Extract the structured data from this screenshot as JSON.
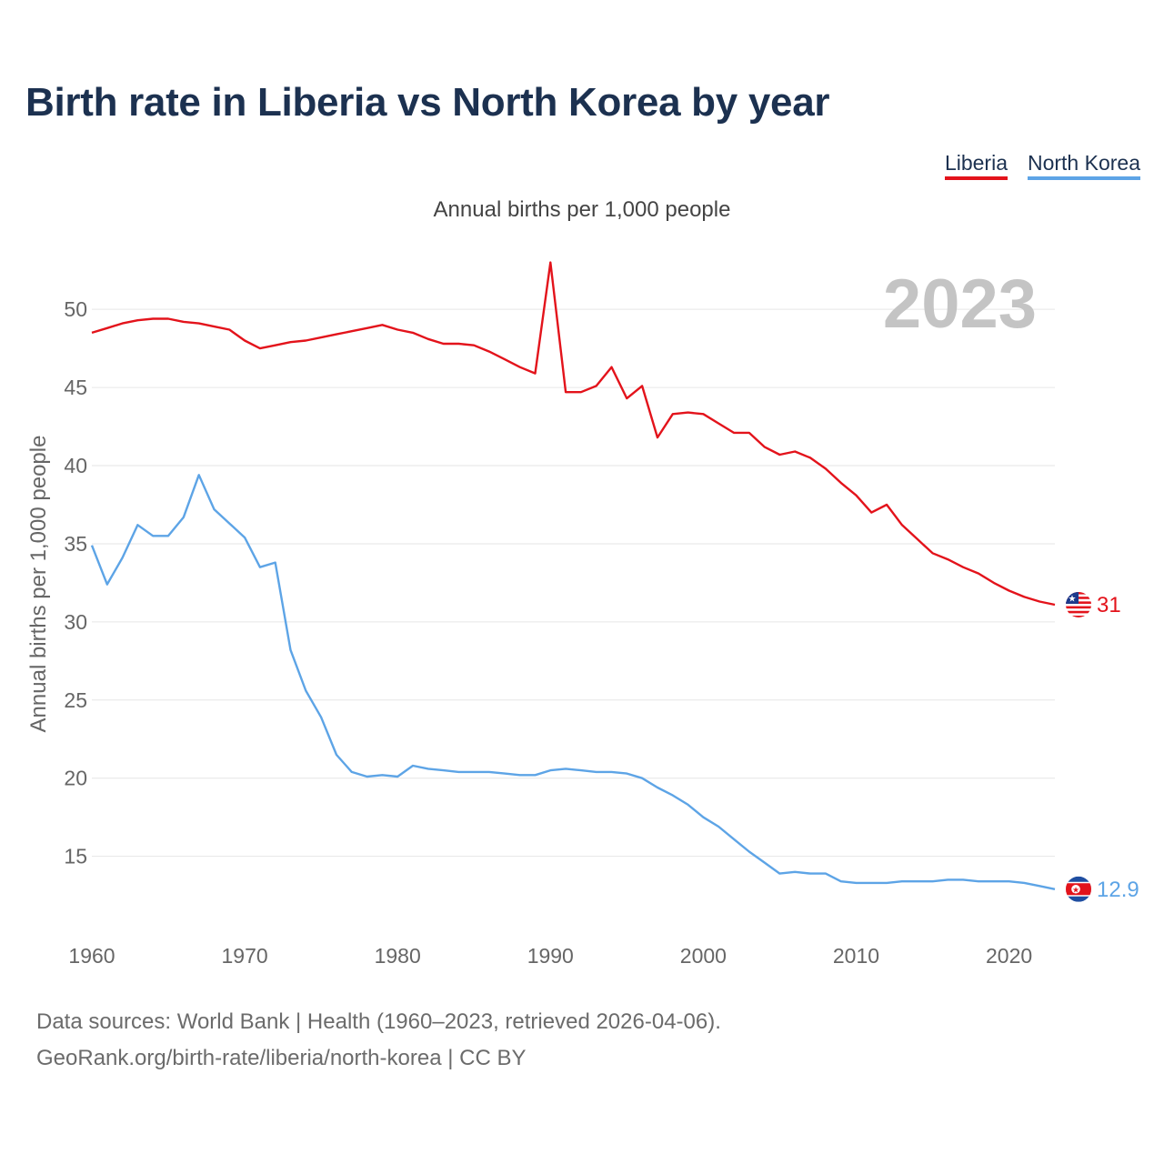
{
  "title": "Birth rate in Liberia vs North Korea by year",
  "subtitle": "Annual births per 1,000 people",
  "year_label": "2023",
  "footer": {
    "line1": "Data sources: World Bank | Health (1960–2023, retrieved 2026-04-06).",
    "line2": "GeoRank.org/birth-rate/liberia/north-korea | CC BY"
  },
  "colors": {
    "liberia": "#e3131b",
    "north_korea": "#5da4e6",
    "title": "#1c3150",
    "grid": "#e6e6e6",
    "year": "#c4c4c4"
  },
  "chart_data": {
    "type": "line",
    "title": "Birth rate in Liberia vs North Korea by year",
    "subtitle": "Annual births per 1,000 people",
    "xlabel": "",
    "ylabel": "Annual births per 1,000 people",
    "xlim": [
      1960,
      2023
    ],
    "ylim": [
      10.5,
      53.5
    ],
    "x_ticks": [
      1960,
      1970,
      1980,
      1990,
      2000,
      2010,
      2020
    ],
    "y_ticks": [
      15,
      20,
      25,
      30,
      35,
      40,
      45,
      50
    ],
    "legend_position": "top-right",
    "x": [
      1960,
      1961,
      1962,
      1963,
      1964,
      1965,
      1966,
      1967,
      1968,
      1969,
      1970,
      1971,
      1972,
      1973,
      1974,
      1975,
      1976,
      1977,
      1978,
      1979,
      1980,
      1981,
      1982,
      1983,
      1984,
      1985,
      1986,
      1987,
      1988,
      1989,
      1990,
      1991,
      1992,
      1993,
      1994,
      1995,
      1996,
      1997,
      1998,
      1999,
      2000,
      2001,
      2002,
      2003,
      2004,
      2005,
      2006,
      2007,
      2008,
      2009,
      2010,
      2011,
      2012,
      2013,
      2014,
      2015,
      2016,
      2017,
      2018,
      2019,
      2020,
      2021,
      2022,
      2023
    ],
    "series": [
      {
        "name": "Liberia",
        "color": "#e3131b",
        "end_label": "31",
        "values": [
          48.5,
          48.8,
          49.1,
          49.3,
          49.4,
          49.4,
          49.2,
          49.1,
          48.9,
          48.7,
          48.0,
          47.5,
          47.7,
          47.9,
          48.0,
          48.2,
          48.4,
          48.6,
          48.8,
          49.0,
          48.7,
          48.5,
          48.1,
          47.8,
          47.8,
          47.7,
          47.3,
          46.8,
          46.3,
          45.9,
          53.0,
          44.7,
          44.7,
          45.1,
          46.3,
          44.3,
          45.1,
          41.8,
          43.3,
          43.4,
          43.3,
          42.7,
          42.1,
          42.1,
          41.2,
          40.7,
          40.9,
          40.5,
          39.8,
          38.9,
          38.1,
          37.0,
          37.5,
          36.2,
          35.3,
          34.4,
          34.0,
          33.5,
          33.1,
          32.5,
          32.0,
          31.6,
          31.3,
          31.1
        ]
      },
      {
        "name": "North Korea",
        "color": "#5da4e6",
        "end_label": "12.9",
        "values": [
          34.9,
          32.4,
          34.1,
          36.2,
          35.5,
          35.5,
          36.7,
          39.4,
          37.2,
          36.3,
          35.4,
          33.5,
          33.8,
          28.2,
          25.6,
          23.9,
          21.5,
          20.4,
          20.1,
          20.2,
          20.1,
          20.8,
          20.6,
          20.5,
          20.4,
          20.4,
          20.4,
          20.3,
          20.2,
          20.2,
          20.5,
          20.6,
          20.5,
          20.4,
          20.4,
          20.3,
          20.0,
          19.4,
          18.9,
          18.3,
          17.5,
          16.9,
          16.1,
          15.3,
          14.6,
          13.9,
          14.0,
          13.9,
          13.9,
          13.4,
          13.3,
          13.3,
          13.3,
          13.4,
          13.4,
          13.4,
          13.5,
          13.5,
          13.4,
          13.4,
          13.4,
          13.3,
          13.1,
          12.9
        ]
      }
    ]
  }
}
